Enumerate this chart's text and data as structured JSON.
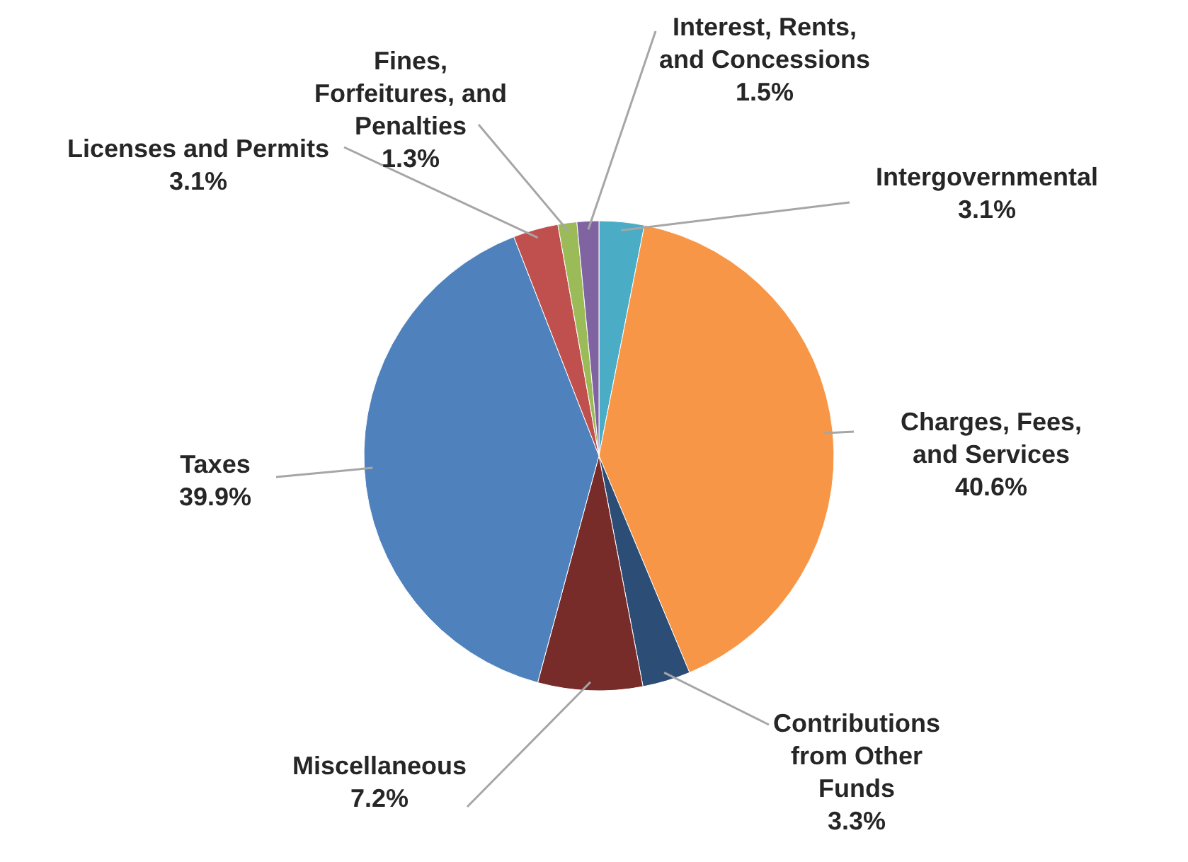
{
  "chart_data": {
    "type": "pie",
    "categories": [
      "Intergovernmental",
      "Charges, Fees, and Services",
      "Contributions from Other Funds",
      "Miscellaneous",
      "Taxes",
      "Licenses and Permits",
      "Fines, Forfeitures, and Penalties",
      "Interest, Rents, and Concessions"
    ],
    "values": [
      3.1,
      40.6,
      3.3,
      7.2,
      39.9,
      3.1,
      1.3,
      1.5
    ],
    "colors": [
      "#4bacc6",
      "#f79646",
      "#2c4d75",
      "#772c2a",
      "#4f81bd",
      "#c0504d",
      "#9bbb59",
      "#8064a2"
    ],
    "value_labels": [
      "3.1%",
      "40.6%",
      "3.3%",
      "7.2%",
      "39.9%",
      "3.1%",
      "1.3%",
      "1.5%"
    ]
  }
}
